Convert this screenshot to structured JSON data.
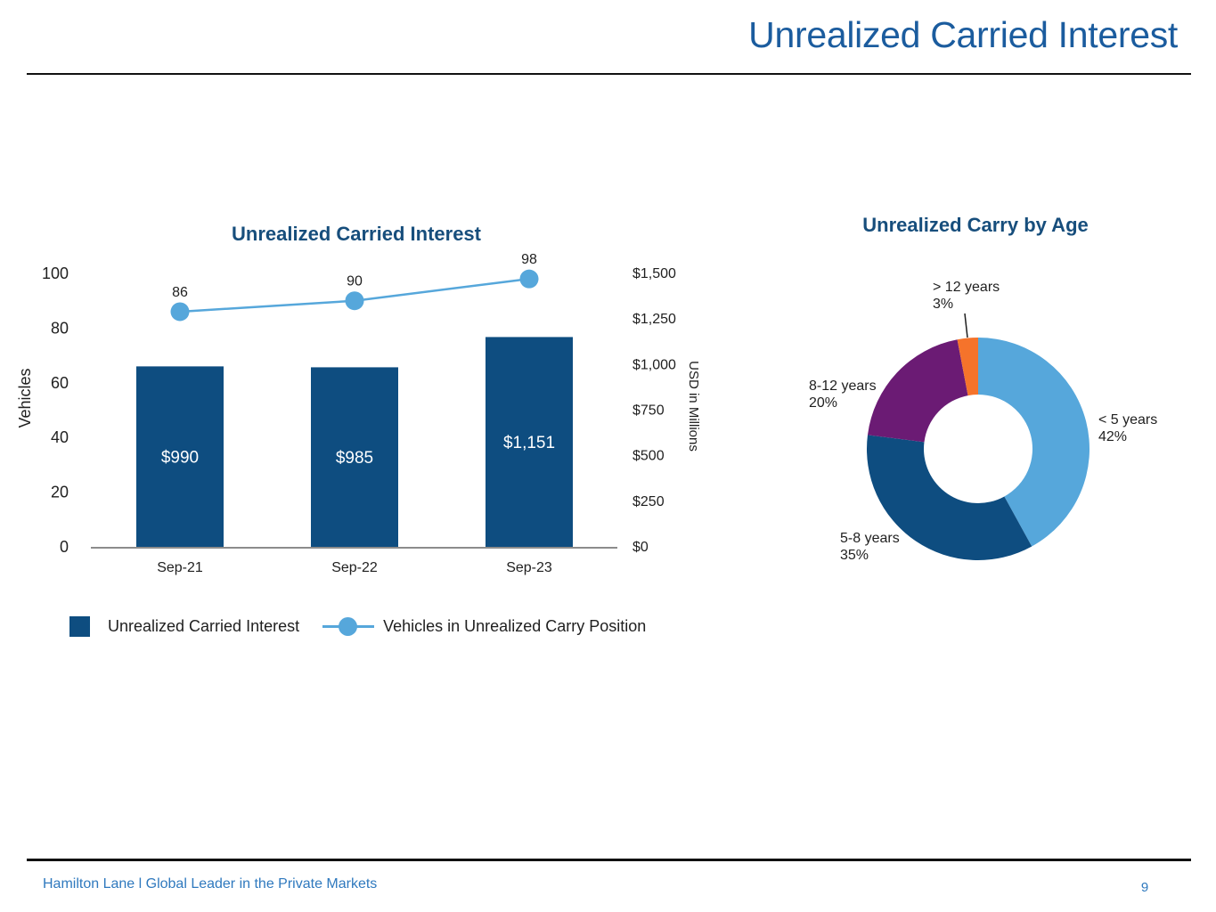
{
  "page": {
    "title": "Unrealized Carried Interest",
    "footer": "Hamilton Lane l Global Leader in the Private Markets",
    "page_number": "9"
  },
  "colors": {
    "page_title_blue": "#1B5C9E",
    "chart_title_blue": "#174E7C",
    "bar_dark_blue": "#0E4D80",
    "line_light_blue": "#56A7DB",
    "purple": "#6B1B74",
    "orange": "#F5732B",
    "footer_blue": "#2F79BE",
    "axis_gray": "#8C8C8C"
  },
  "chart_data": [
    {
      "type": "bar",
      "title": "Unrealized Carried Interest",
      "categories": [
        "Sep-21",
        "Sep-22",
        "Sep-23"
      ],
      "series": [
        {
          "name": "Unrealized Carried Interest",
          "render": "bar",
          "axis": "right",
          "values": [
            990,
            985,
            1151
          ],
          "labels": [
            "$990",
            "$985",
            "$1,151"
          ],
          "color": "#0E4D80"
        },
        {
          "name": "Vehicles in Unrealized Carry Position",
          "render": "line",
          "axis": "left",
          "values": [
            86,
            90,
            98
          ],
          "color": "#56A7DB"
        }
      ],
      "left_axis": {
        "label": "Vehicles",
        "min": 0,
        "max": 100,
        "tick_values": [
          0,
          20,
          40,
          60,
          80,
          100
        ],
        "tick_labels": [
          "0",
          "20",
          "40",
          "60",
          "80",
          "100"
        ]
      },
      "right_axis": {
        "label": "USD in Millions",
        "min": 0,
        "max": 1500,
        "tick_values": [
          0,
          250,
          500,
          750,
          1000,
          1250,
          1500
        ],
        "tick_labels": [
          "$0",
          "$250",
          "$500",
          "$750",
          "$1,000",
          "$1,250",
          "$1,500"
        ]
      },
      "legend_position": "bottom",
      "grid": false
    },
    {
      "type": "pie",
      "subtype": "donut",
      "title": "Unrealized Carry by Age",
      "segments": [
        {
          "label": "< 5 years",
          "pct": 42,
          "pct_label": "42%",
          "color": "#56A7DB"
        },
        {
          "label": "5-8 years",
          "pct": 35,
          "pct_label": "35%",
          "color": "#0E4D80"
        },
        {
          "label": "8-12 years",
          "pct": 20,
          "pct_label": "20%",
          "color": "#6B1B74"
        },
        {
          "label": "> 12 years",
          "pct": 3,
          "pct_label": "3%",
          "color": "#F5732B"
        }
      ],
      "start_angle_deg": 0,
      "direction": "clockwise"
    }
  ]
}
